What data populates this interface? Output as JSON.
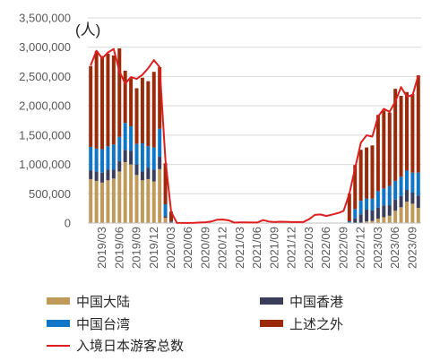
{
  "chart_data": {
    "type": "bar",
    "stacked": true,
    "unit_label": "(人)",
    "ylim": [
      0,
      3500000
    ],
    "y_ticks": [
      "0",
      "500,000",
      "1,000,000",
      "1,500,000",
      "2,000,000",
      "2,500,000",
      "3,000,000",
      "3,500,000"
    ],
    "x_tick_labels": [
      "2019/03",
      "2019/06",
      "2019/09",
      "2019/12",
      "2020/03",
      "2020/06",
      "2020/09",
      "2020/12",
      "2021/03",
      "2021/06",
      "2021/09",
      "2021/12",
      "2022/03",
      "2022/06",
      "2022/09",
      "2022/12",
      "2023/03",
      "2023/06",
      "2023/09"
    ],
    "categories": [
      "2019/01",
      "2019/02",
      "2019/03",
      "2019/04",
      "2019/05",
      "2019/06",
      "2019/07",
      "2019/08",
      "2019/09",
      "2019/10",
      "2019/11",
      "2019/12",
      "2020/01",
      "2020/02",
      "2020/03",
      "2020/04",
      "2020/05",
      "2020/06",
      "2020/07",
      "2020/08",
      "2020/09",
      "2020/10",
      "2020/11",
      "2020/12",
      "2021/01",
      "2021/02",
      "2021/03",
      "2021/04",
      "2021/05",
      "2021/06",
      "2021/07",
      "2021/08",
      "2021/09",
      "2021/10",
      "2021/11",
      "2021/12",
      "2022/01",
      "2022/02",
      "2022/03",
      "2022/04",
      "2022/05",
      "2022/06",
      "2022/07",
      "2022/08",
      "2022/09",
      "2022/10",
      "2022/11",
      "2022/12",
      "2023/01",
      "2023/02",
      "2023/03",
      "2023/04",
      "2023/05",
      "2023/06",
      "2023/07",
      "2023/08",
      "2023/09",
      "2023/10"
    ],
    "series": [
      {
        "name": "中国大陆",
        "color": "#C09A5B",
        "values": [
          750000,
          720000,
          690000,
          730000,
          760000,
          880000,
          1040000,
          1000000,
          820000,
          730000,
          750000,
          710000,
          920000,
          90000,
          10000,
          0,
          0,
          0,
          0,
          0,
          0,
          0,
          0,
          0,
          0,
          0,
          0,
          0,
          0,
          0,
          0,
          0,
          0,
          0,
          0,
          0,
          0,
          0,
          0,
          0,
          0,
          0,
          0,
          0,
          0,
          0,
          0,
          0,
          30000,
          35000,
          75000,
          100000,
          125000,
          210000,
          270000,
          365000,
          330000,
          260000
        ]
      },
      {
        "name": "中国香港",
        "color": "#3B3D5C",
        "values": [
          150000,
          160000,
          170000,
          180000,
          150000,
          180000,
          210000,
          230000,
          180000,
          150000,
          190000,
          200000,
          210000,
          30000,
          5000,
          0,
          0,
          0,
          0,
          0,
          0,
          0,
          0,
          0,
          0,
          0,
          0,
          0,
          0,
          0,
          0,
          0,
          0,
          0,
          0,
          0,
          0,
          0,
          0,
          0,
          0,
          0,
          0,
          0,
          0,
          10000,
          80000,
          150000,
          200000,
          180000,
          190000,
          200000,
          180000,
          190000,
          190000,
          200000,
          190000,
          210000
        ]
      },
      {
        "name": "中国台湾",
        "color": "#0F75C6",
        "values": [
          400000,
          390000,
          400000,
          400000,
          430000,
          410000,
          460000,
          420000,
          350000,
          480000,
          370000,
          380000,
          480000,
          200000,
          10000,
          0,
          0,
          0,
          0,
          0,
          0,
          0,
          0,
          0,
          0,
          0,
          0,
          0,
          0,
          0,
          0,
          0,
          0,
          0,
          0,
          0,
          0,
          0,
          0,
          0,
          0,
          0,
          0,
          0,
          0,
          20000,
          160000,
          230000,
          190000,
          200000,
          280000,
          290000,
          330000,
          320000,
          330000,
          330000,
          340000,
          390000
        ]
      },
      {
        "name": "上述之外",
        "color": "#9A2A0A",
        "values": [
          1380000,
          1660000,
          1590000,
          1580000,
          1520000,
          1510000,
          890000,
          820000,
          950000,
          1120000,
          1110000,
          1290000,
          1050000,
          700000,
          170000,
          0,
          0,
          0,
          0,
          0,
          0,
          0,
          0,
          0,
          0,
          0,
          0,
          0,
          0,
          0,
          0,
          0,
          0,
          0,
          0,
          0,
          0,
          0,
          0,
          0,
          0,
          0,
          0,
          0,
          0,
          470000,
          750000,
          870000,
          870000,
          910000,
          1300000,
          1330000,
          1250000,
          1570000,
          1380000,
          1340000,
          1340000,
          1660000
        ]
      },
      {
        "name": "入境日本游客总数",
        "color": "#E01E1E",
        "type": "line",
        "values": [
          2690000,
          2940000,
          2810000,
          2910000,
          2970000,
          2590000,
          2380000,
          2490000,
          2460000,
          2530000,
          2640000,
          2780000,
          2660000,
          1080000,
          190000,
          3000,
          1700,
          2600,
          3800,
          8700,
          13700,
          27400,
          56700,
          58700,
          46500,
          7400,
          12300,
          10900,
          10000,
          9300,
          51100,
          25900,
          17700,
          22100,
          20700,
          17700,
          17800,
          16700,
          66100,
          139500,
          147000,
          120400,
          144500,
          169900,
          206600,
          498600,
          934500,
          1370000,
          1497000,
          1475000,
          1817000,
          1949000,
          1898000,
          2073000,
          2320000,
          2157000,
          2181000,
          2516000
        ]
      }
    ]
  }
}
